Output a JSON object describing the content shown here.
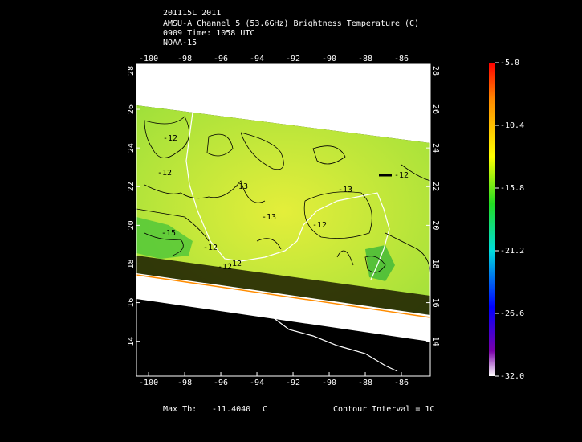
{
  "header": {
    "lines": [
      "201115L 2011",
      "AMSU-A Channel 5 (53.6GHz) Brightness Temperature (C)",
      "0909 Time: 1058 UTC",
      "NOAA-15"
    ]
  },
  "map": {
    "lon_range": [
      -100.67,
      -84.4
    ],
    "lat_range": [
      12.2,
      28.33
    ],
    "lon_ticks": [
      -100,
      -98,
      -96,
      -94,
      -92,
      -90,
      -88,
      -86
    ],
    "lat_ticks": [
      14,
      16,
      18,
      20,
      22,
      24,
      26,
      28
    ],
    "contour_labels": [
      "-12",
      "-12",
      "-13",
      "-13",
      "-15",
      "-12",
      "-12",
      "-13",
      "-12",
      "-12",
      "-12"
    ]
  },
  "colorbar": {
    "range": [
      -32,
      -5
    ],
    "ticks": [
      {
        "value": -5,
        "label": "-5.0"
      },
      -10.4,
      -15.8,
      -21.2,
      -26.6,
      {
        "value": -32,
        "label": "-32.0"
      }
    ]
  },
  "footer": {
    "max_label": "Max Tb:",
    "max_value": "-11.4040",
    "unit": "C",
    "contour_interval": "Contour Interval = 1C"
  }
}
